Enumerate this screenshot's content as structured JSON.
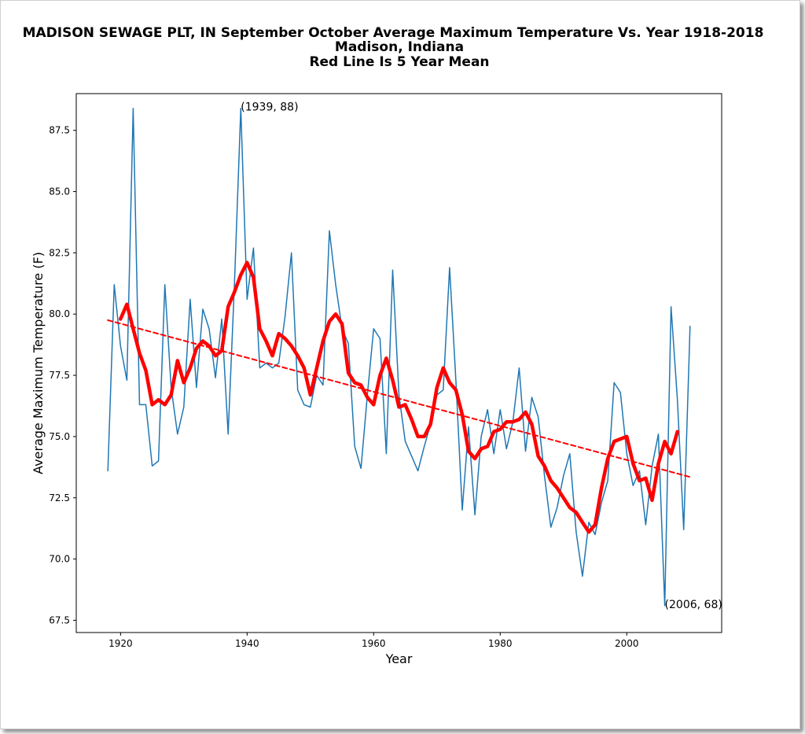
{
  "chart_data": {
    "type": "line",
    "title": "MADISON SEWAGE PLT, IN  September October Average Maximum Temperature Vs. Year 1918-2018",
    "subtitle": "Madison, Indiana",
    "subtitle2": "Red Line Is 5 Year Mean",
    "xlabel": "Year",
    "ylabel": "Average Maximum Temperature (F)",
    "xlim": [
      1913,
      2015
    ],
    "ylim": [
      67.0,
      89.0
    ],
    "xticks": [
      1920,
      1940,
      1960,
      1980,
      2000
    ],
    "yticks": [
      67.5,
      70.0,
      72.5,
      75.0,
      77.5,
      80.0,
      82.5,
      85.0,
      87.5
    ],
    "x_tick_labels": [
      "1920",
      "1940",
      "1960",
      "1980",
      "2000"
    ],
    "y_tick_labels": [
      "67.5",
      "70.0",
      "72.5",
      "75.0",
      "77.5",
      "80.0",
      "82.5",
      "85.0",
      "87.5"
    ],
    "series": [
      {
        "color": "#1f77b4",
        "x": [
          1918,
          1919,
          1920,
          1921,
          1922,
          1923,
          1924,
          1925,
          1926,
          1927,
          1928,
          1929,
          1930,
          1931,
          1932,
          1933,
          1934,
          1935,
          1936,
          1937,
          1938,
          1939,
          1940,
          1941,
          1942,
          1943,
          1944,
          1945,
          1946,
          1947,
          1948,
          1949,
          1950,
          1951,
          1952,
          1953,
          1954,
          1955,
          1956,
          1957,
          1958,
          1959,
          1960,
          1961,
          1962,
          1963,
          1964,
          1965,
          1966,
          1967,
          1968,
          1969,
          1970,
          1971,
          1972,
          1973,
          1974,
          1975,
          1976,
          1977,
          1978,
          1979,
          1980,
          1981,
          1982,
          1983,
          1984,
          1985,
          1986,
          1987,
          1988,
          1989,
          1990,
          1991,
          1992,
          1993,
          1994,
          1995,
          1996,
          1997,
          1998,
          1999,
          2000,
          2001,
          2002,
          2003,
          2004,
          2005,
          2006,
          2007,
          2008,
          2009,
          2010
        ],
        "y": [
          73.6,
          81.2,
          78.7,
          77.3,
          88.4,
          76.3,
          76.3,
          73.8,
          74.0,
          81.2,
          77.0,
          75.1,
          76.2,
          80.6,
          77.0,
          80.2,
          79.4,
          77.4,
          79.8,
          75.1,
          81.2,
          88.4,
          80.6,
          82.7,
          77.8,
          78.0,
          77.8,
          78.0,
          79.9,
          82.5,
          76.9,
          76.3,
          76.2,
          77.5,
          77.1,
          83.4,
          81.2,
          79.4,
          78.8,
          74.6,
          73.7,
          76.7,
          79.4,
          79.0,
          74.3,
          81.8,
          76.7,
          74.8,
          74.2,
          73.6,
          74.6,
          75.5,
          76.7,
          76.9,
          81.9,
          77.3,
          72.0,
          75.4,
          71.8,
          75.0,
          76.1,
          74.3,
          76.1,
          74.5,
          75.6,
          77.8,
          74.4,
          76.6,
          75.8,
          73.4,
          71.3,
          72.1,
          73.4,
          74.3,
          71.1,
          69.3,
          71.5,
          71.0,
          72.3,
          73.2,
          77.2,
          76.8,
          74.3,
          73.0,
          73.6,
          71.4,
          73.8,
          75.1,
          68.1,
          80.3,
          76.5,
          71.2,
          79.5
        ]
      },
      {
        "color": "#ff0000",
        "x": [
          1920,
          1921,
          1922,
          1923,
          1924,
          1925,
          1926,
          1927,
          1928,
          1929,
          1930,
          1931,
          1932,
          1933,
          1934,
          1935,
          1936,
          1937,
          1938,
          1939,
          1940,
          1941,
          1942,
          1943,
          1944,
          1945,
          1946,
          1947,
          1948,
          1949,
          1950,
          1951,
          1952,
          1953,
          1954,
          1955,
          1956,
          1957,
          1958,
          1959,
          1960,
          1961,
          1962,
          1963,
          1964,
          1965,
          1966,
          1967,
          1968,
          1969,
          1970,
          1971,
          1972,
          1973,
          1974,
          1975,
          1976,
          1977,
          1978,
          1979,
          1980,
          1981,
          1982,
          1983,
          1984,
          1985,
          1986,
          1987,
          1988,
          1989,
          1990,
          1991,
          1992,
          1993,
          1994,
          1995,
          1996,
          1997,
          1998,
          1999,
          2000,
          2001,
          2002,
          2003,
          2004,
          2005,
          2006,
          2007,
          2008
        ],
        "y": [
          79.8,
          80.4,
          79.4,
          78.4,
          77.7,
          76.3,
          76.5,
          76.3,
          76.7,
          78.1,
          77.2,
          77.8,
          78.6,
          78.9,
          78.7,
          78.3,
          78.5,
          80.3,
          80.9,
          81.6,
          82.1,
          81.5,
          79.4,
          78.9,
          78.3,
          79.2,
          79.0,
          78.7,
          78.3,
          77.8,
          76.7,
          77.8,
          78.9,
          79.7,
          80.0,
          79.6,
          77.6,
          77.2,
          77.1,
          76.6,
          76.3,
          77.5,
          78.2,
          77.3,
          76.2,
          76.3,
          75.7,
          75.0,
          75.0,
          75.5,
          77.0,
          77.8,
          77.2,
          76.9,
          75.9,
          74.4,
          74.1,
          74.5,
          74.6,
          75.2,
          75.3,
          75.6,
          75.6,
          75.7,
          76.0,
          75.5,
          74.2,
          73.8,
          73.2,
          72.9,
          72.5,
          72.1,
          71.9,
          71.5,
          71.1,
          71.4,
          72.9,
          74.1,
          74.8,
          74.9,
          75.0,
          73.9,
          73.2,
          73.3,
          72.4,
          73.9,
          74.8,
          74.3,
          75.2
        ]
      },
      {
        "color": "#ff0000",
        "x": [
          1918,
          2010
        ],
        "y": [
          79.75,
          73.35
        ]
      }
    ],
    "annotations": [
      {
        "text": "(1939, 88)",
        "x": 1939,
        "y": 88.4
      },
      {
        "text": "(2006, 68)",
        "x": 2006,
        "y": 68.1
      }
    ],
    "grid": false
  }
}
